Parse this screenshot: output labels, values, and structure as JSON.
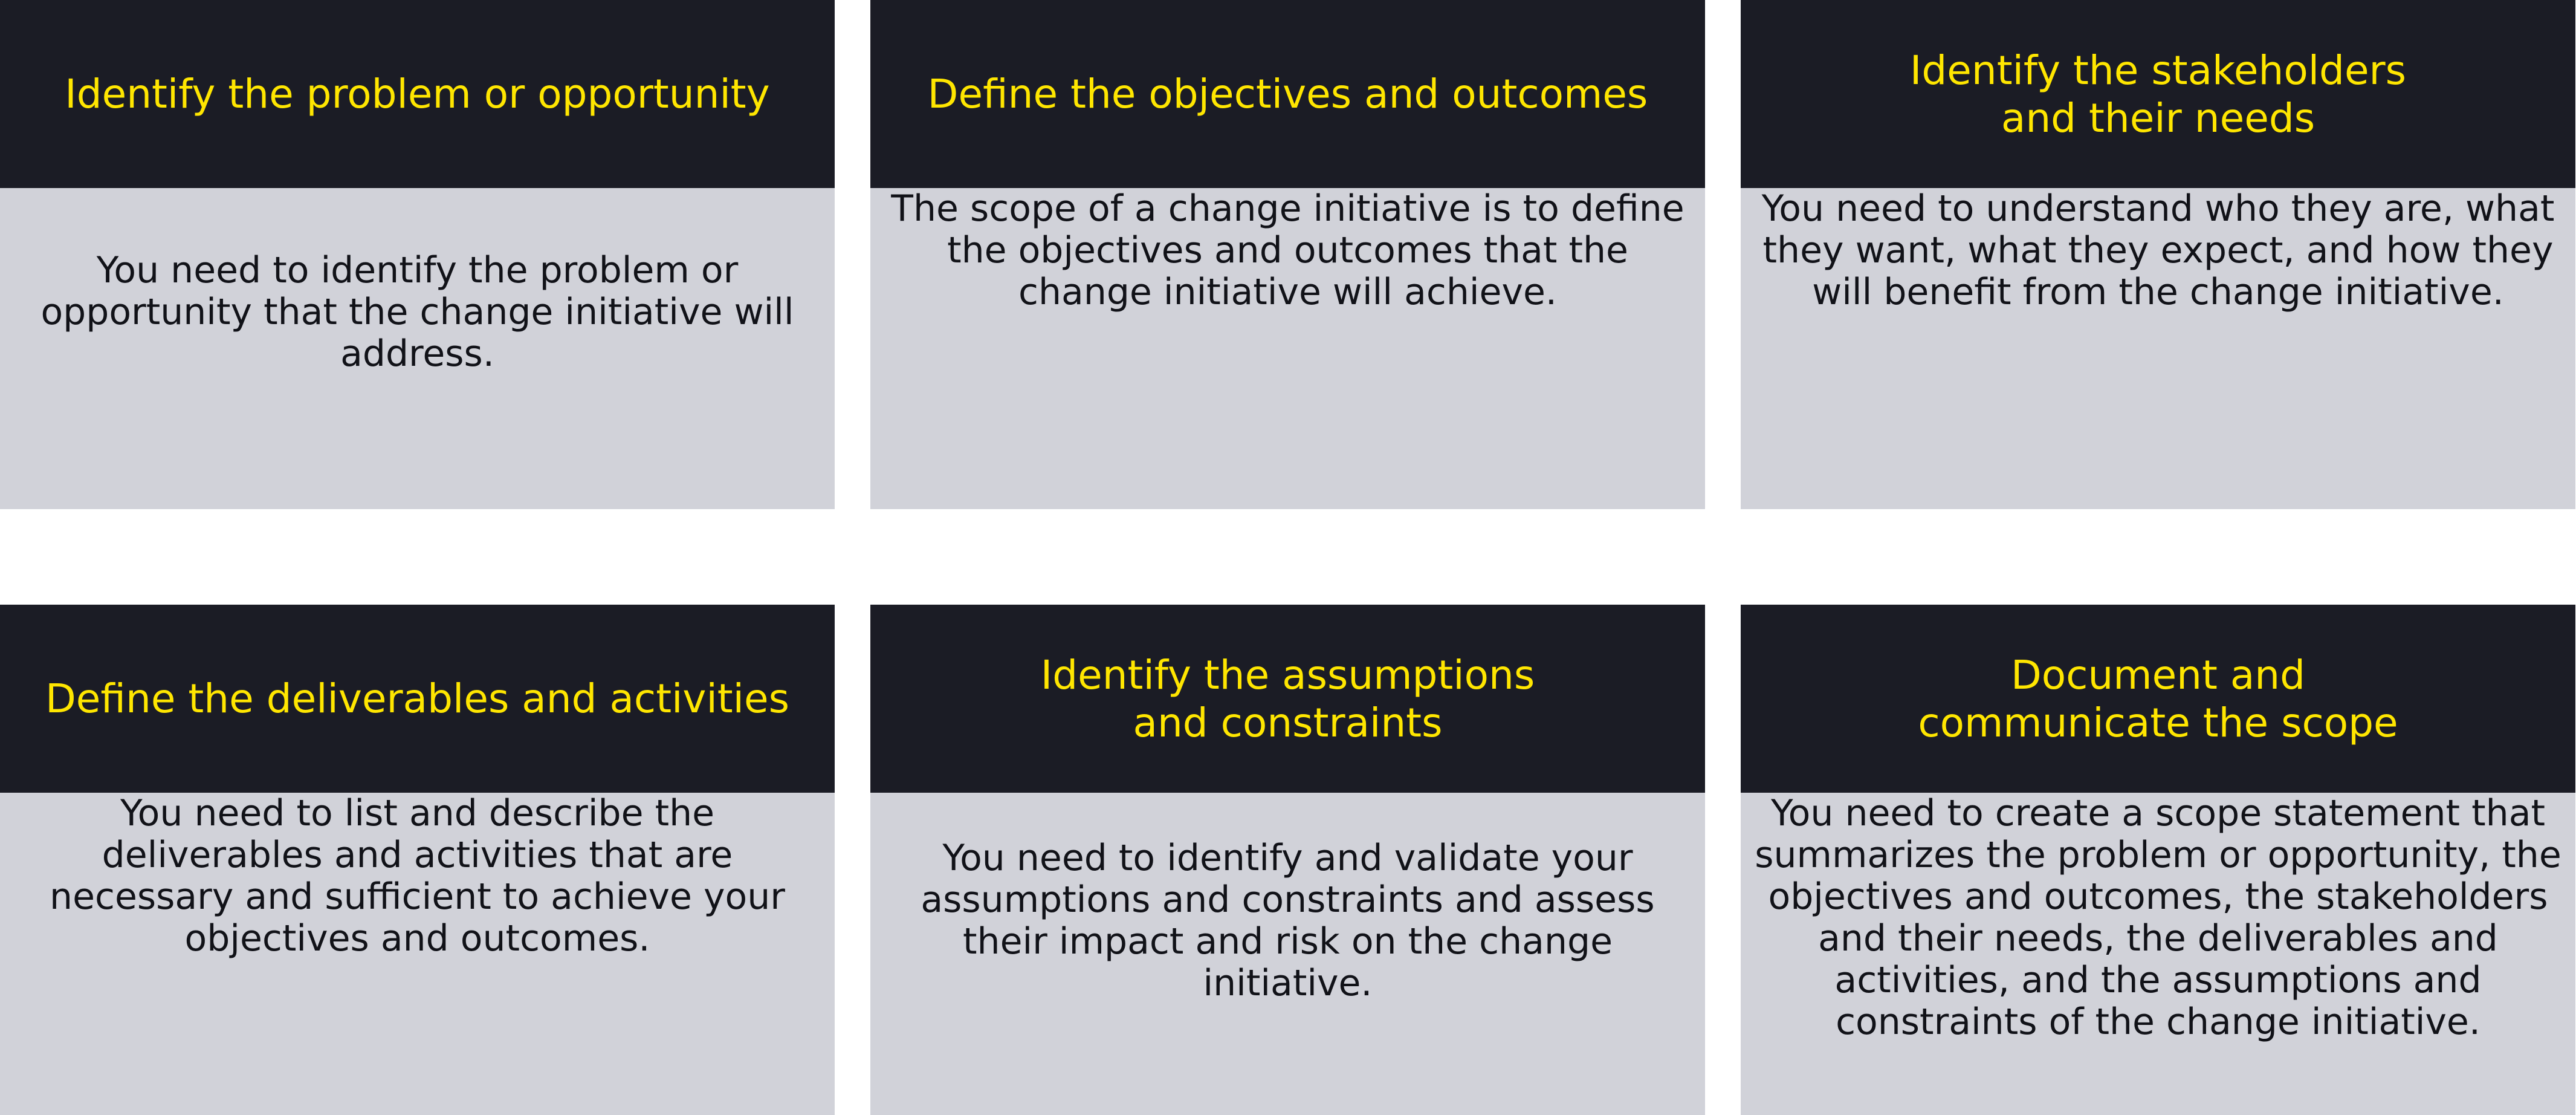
{
  "cards": [
    {
      "title": "Identify the problem or opportunity",
      "text": "You need to identify the problem or opportunity that the change initiative will address."
    },
    {
      "title": "Define the objectives and outcomes",
      "text": "The scope of a change initiative is to define the objectives and outcomes that the change initiative will achieve."
    },
    {
      "title": "Identify the stakeholders\nand their needs",
      "text": "You need to understand who they are, what they want, what they expect, and how they will benefit from the change initiative."
    },
    {
      "title": "Define the deliverables and activities",
      "text": "You need to list and describe the deliverables and activities that are necessary and sufficient to achieve your objectives and outcomes."
    },
    {
      "title": "Identify the assumptions\nand constraints",
      "text": "You need to identify and validate your assumptions and constraints and assess their impact and risk on the change initiative."
    },
    {
      "title": "Document and\ncommunicate the scope",
      "text": "You need to create a scope statement that summarizes the problem or opportunity, the objectives and outcomes, the stakeholders and their needs, the deliverables and activities, and the assumptions and constraints of the change initiative."
    }
  ],
  "colors": {
    "header_bg": "#1b1c25",
    "header_text": "#ffe600",
    "body_bg": "#d1d2d9",
    "body_text": "#111218",
    "page_bg": "#ffffff"
  }
}
